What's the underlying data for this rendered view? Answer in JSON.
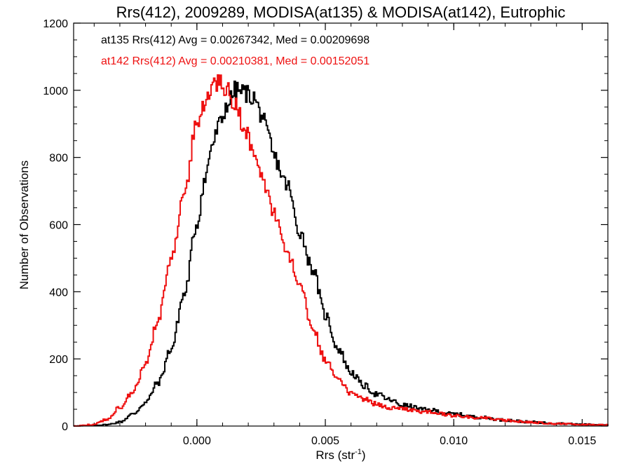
{
  "chart_data": {
    "type": "line",
    "title": "Rrs(412), 2009289, MODISA(at135) & MODISA(at142), Eutrophic",
    "xlabel_main": "Rrs (str",
    "xlabel_sup": "-1",
    "xlabel_close": ")",
    "ylabel": "Number of Observations",
    "xlim": [
      -0.0048,
      0.016
    ],
    "ylim": [
      0,
      1200
    ],
    "xticks": [
      0.0,
      0.005,
      0.01,
      0.015
    ],
    "xtick_labels": [
      "0.000",
      "0.005",
      "0.010",
      "0.015"
    ],
    "yticks": [
      0,
      200,
      400,
      600,
      800,
      1000,
      1200
    ],
    "ytick_labels": [
      "0",
      "200",
      "400",
      "600",
      "800",
      "1000",
      "1200"
    ],
    "grid": false,
    "legend": [
      {
        "text": "at135 Rrs(412) Avg = 0.00267342, Med = 0.00209698",
        "color": "#000000"
      },
      {
        "text": "at142 Rrs(412) Avg = 0.00210381, Med = 0.00152051",
        "color": "#ee1111"
      }
    ],
    "series": [
      {
        "color": "#000000",
        "points": [
          [
            -0.0048,
            0
          ],
          [
            -0.004,
            2
          ],
          [
            -0.0035,
            4
          ],
          [
            -0.003,
            12
          ],
          [
            -0.0025,
            35
          ],
          [
            -0.002,
            70
          ],
          [
            -0.0015,
            130
          ],
          [
            -0.001,
            230
          ],
          [
            -0.0005,
            390
          ],
          [
            0.0,
            600
          ],
          [
            0.0003,
            730
          ],
          [
            0.0006,
            840
          ],
          [
            0.0009,
            900
          ],
          [
            0.0012,
            960
          ],
          [
            0.0015,
            1000
          ],
          [
            0.0018,
            995
          ],
          [
            0.0022,
            980
          ],
          [
            0.0025,
            930
          ],
          [
            0.0028,
            860
          ],
          [
            0.003,
            800
          ],
          [
            0.0035,
            720
          ],
          [
            0.004,
            580
          ],
          [
            0.0045,
            470
          ],
          [
            0.005,
            330
          ],
          [
            0.0055,
            230
          ],
          [
            0.006,
            160
          ],
          [
            0.0065,
            120
          ],
          [
            0.007,
            95
          ],
          [
            0.0075,
            78
          ],
          [
            0.008,
            62
          ],
          [
            0.009,
            48
          ],
          [
            0.01,
            36
          ],
          [
            0.011,
            26
          ],
          [
            0.012,
            18
          ],
          [
            0.013,
            12
          ],
          [
            0.014,
            8
          ],
          [
            0.015,
            5
          ],
          [
            0.016,
            4
          ]
        ]
      },
      {
        "color": "#ee1111",
        "points": [
          [
            -0.0048,
            0
          ],
          [
            -0.004,
            5
          ],
          [
            -0.0035,
            20
          ],
          [
            -0.003,
            55
          ],
          [
            -0.0025,
            100
          ],
          [
            -0.002,
            180
          ],
          [
            -0.0015,
            320
          ],
          [
            -0.001,
            500
          ],
          [
            -0.0005,
            690
          ],
          [
            0.0,
            900
          ],
          [
            0.0003,
            960
          ],
          [
            0.0006,
            1010
          ],
          [
            0.0009,
            1030
          ],
          [
            0.0012,
            1000
          ],
          [
            0.0015,
            960
          ],
          [
            0.0018,
            900
          ],
          [
            0.0022,
            820
          ],
          [
            0.0025,
            750
          ],
          [
            0.0028,
            680
          ],
          [
            0.003,
            630
          ],
          [
            0.0035,
            520
          ],
          [
            0.004,
            420
          ],
          [
            0.0045,
            290
          ],
          [
            0.005,
            200
          ],
          [
            0.0055,
            135
          ],
          [
            0.006,
            100
          ],
          [
            0.0065,
            80
          ],
          [
            0.007,
            65
          ],
          [
            0.0075,
            55
          ],
          [
            0.008,
            50
          ],
          [
            0.009,
            42
          ],
          [
            0.01,
            32
          ],
          [
            0.011,
            24
          ],
          [
            0.012,
            17
          ],
          [
            0.013,
            11
          ],
          [
            0.014,
            7
          ],
          [
            0.015,
            5
          ],
          [
            0.016,
            4
          ]
        ]
      }
    ]
  }
}
